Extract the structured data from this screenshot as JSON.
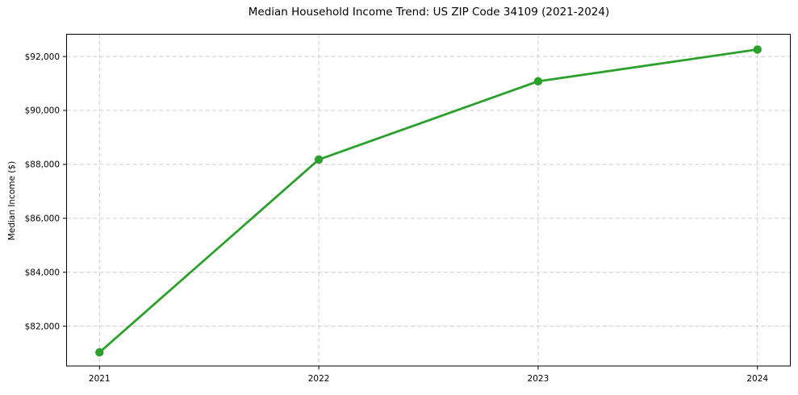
{
  "chart_data": {
    "type": "line",
    "title": "Median Household Income Trend: US ZIP Code 34109 (2021-2024)",
    "xlabel": "",
    "ylabel": "Median Income ($)",
    "x": [
      2021,
      2022,
      2023,
      2024
    ],
    "values": [
      81030,
      88180,
      91080,
      92260
    ],
    "x_tick_labels": [
      "2021",
      "2022",
      "2023",
      "2024"
    ],
    "y_ticks": [
      82000,
      84000,
      86000,
      88000,
      90000,
      92000
    ],
    "y_tick_labels": [
      "$82,000",
      "$84,000",
      "$86,000",
      "$88,000",
      "$90,000",
      "$92,000"
    ],
    "xlim": [
      2020.85,
      2024.15
    ],
    "ylim": [
      80525,
      92825
    ],
    "grid": true,
    "grid_style": "dashed",
    "legend": "none",
    "line_color": "#2ca02c",
    "marker": "circle",
    "grid_color": "#cccccc",
    "axis_color": "#000000",
    "background_color": "#ffffff"
  }
}
